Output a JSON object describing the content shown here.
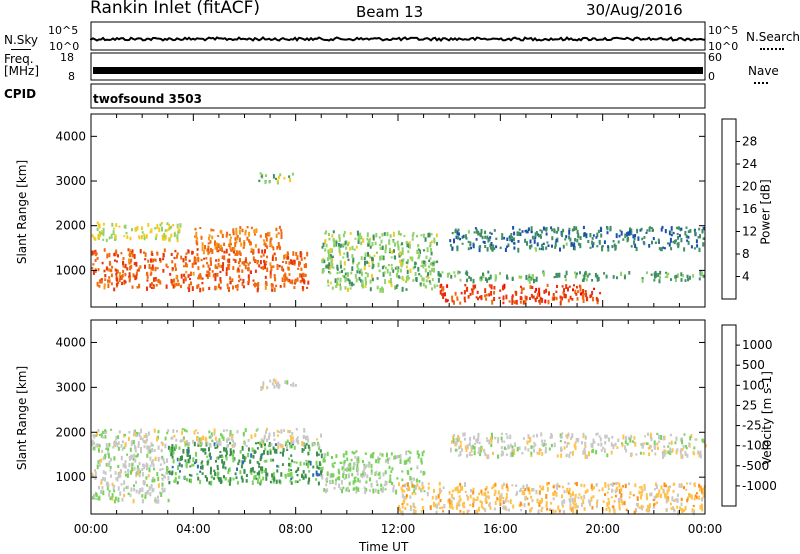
{
  "header": {
    "station": "Rankin Inlet (fitACF)",
    "beam": "Beam 13",
    "date": "30/Aug/2016"
  },
  "noise_panel": {
    "left_label": "N.Sky",
    "left_ticks": [
      "10^5",
      "10^0"
    ],
    "right_label": "N.Search",
    "right_ticks": [
      "10^5",
      "10^0"
    ]
  },
  "freq_panel": {
    "left_label_1": "Freq.",
    "left_label_2": "[MHz]",
    "left_ticks": [
      "18",
      "8"
    ],
    "right_label": "Nave",
    "right_ticks": [
      "60",
      "0"
    ]
  },
  "cpid_panel": {
    "left_label": "CPID",
    "program": "twofsound 3503"
  },
  "colors": {
    "power_scale": [
      "#0000ff",
      "#1a4fae",
      "#3f8f63",
      "#8fd26a",
      "#f2cc22",
      "#f59a18",
      "#ef6a10",
      "#e8330c",
      "#ff0000"
    ],
    "velocity_scale": [
      "#ff0000",
      "#ff4a00",
      "#ff8f1a",
      "#ffc34d",
      "#c8c8c8",
      "#78d35a",
      "#3c8f4c",
      "#2f6bb0",
      "#0033ff"
    ]
  },
  "chart_data": [
    {
      "type": "heatmap",
      "name": "power",
      "ylabel": "Slant Range [km]",
      "y_ticks": [
        "1000",
        "2000",
        "3000",
        "4000"
      ],
      "colorbar_label": "Power [dB]",
      "colorbar_ticks": [
        "4",
        "8",
        "12",
        "16",
        "20",
        "24",
        "28"
      ],
      "colorbar_range": [
        0,
        32
      ],
      "ylim": [
        180,
        4500
      ],
      "xlim": [
        "00:00",
        "24:00"
      ],
      "scatter_regions": [
        {
          "t0": 0.0,
          "t1": 8.5,
          "r0": 600,
          "r1": 1500,
          "value": 24
        },
        {
          "t0": 0.0,
          "t1": 3.5,
          "r0": 1700,
          "r1": 2100,
          "value": 14
        },
        {
          "t0": 4.0,
          "t1": 7.5,
          "r0": 1500,
          "r1": 2000,
          "value": 22
        },
        {
          "t0": 6.5,
          "t1": 8.0,
          "r0": 3000,
          "r1": 3200,
          "value": 12
        },
        {
          "t0": 9.0,
          "t1": 13.5,
          "r0": 600,
          "r1": 1900,
          "value": 12
        },
        {
          "t0": 13.5,
          "t1": 20.0,
          "r0": 300,
          "r1": 700,
          "value": 26
        },
        {
          "t0": 13.5,
          "t1": 24.0,
          "r0": 800,
          "r1": 1000,
          "value": 10
        },
        {
          "t0": 14.0,
          "t1": 24.0,
          "r0": 1500,
          "r1": 2000,
          "value": 8
        }
      ]
    },
    {
      "type": "heatmap",
      "name": "velocity",
      "ylabel": "Slant Range [km]",
      "y_ticks": [
        "1000",
        "2000",
        "3000",
        "4000"
      ],
      "colorbar_label": "Velocity [m s-1]",
      "colorbar_ticks": [
        "-1000",
        "-500",
        "-100",
        "-25",
        "25",
        "100",
        "500",
        "1000"
      ],
      "colorbar_range": [
        -2000,
        2000
      ],
      "ylim": [
        180,
        4500
      ],
      "xlim": [
        "00:00",
        "24:00"
      ],
      "scatter_regions": [
        {
          "t0": 0.0,
          "t1": 3.0,
          "r0": 500,
          "r1": 1700,
          "value": 100
        },
        {
          "t0": 3.0,
          "t1": 9.0,
          "r0": 900,
          "r1": 1800,
          "value": 800
        },
        {
          "t0": 0.0,
          "t1": 9.0,
          "r0": 1700,
          "r1": 2100,
          "value": 0
        },
        {
          "t0": 9.0,
          "t1": 13.0,
          "r0": 700,
          "r1": 1600,
          "value": 300
        },
        {
          "t0": 12.0,
          "t1": 24.0,
          "r0": 250,
          "r1": 900,
          "value": -400
        },
        {
          "t0": 14.0,
          "t1": 24.0,
          "r0": 1500,
          "r1": 2000,
          "value": 0
        },
        {
          "t0": 6.5,
          "t1": 8.0,
          "r0": 3000,
          "r1": 3200,
          "value": 0
        }
      ]
    }
  ],
  "time_axis": {
    "ticks": [
      "00:00",
      "04:00",
      "08:00",
      "12:00",
      "16:00",
      "20:00",
      "00:00"
    ],
    "label": "Time UT"
  }
}
